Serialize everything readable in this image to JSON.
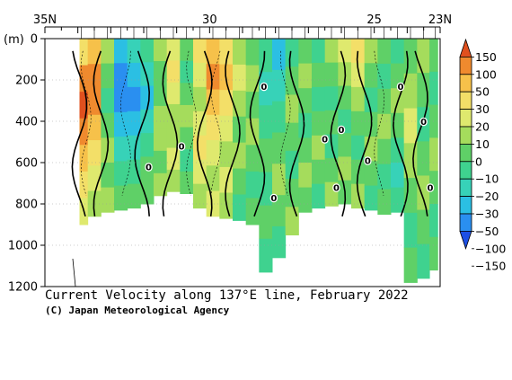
{
  "chart_data": {
    "type": "heatmap",
    "title": "Current Velocity along 137°E line, February 2022",
    "credit": "(C) Japan Meteorological Agency",
    "xlabel": "",
    "ylabel": "(m)",
    "x_ticks": [
      "35N",
      "30",
      "25",
      "23N"
    ],
    "x_tick_values": [
      35,
      30,
      25,
      23
    ],
    "xlim": [
      35,
      23
    ],
    "y_ticks": [
      "0",
      "200",
      "400",
      "600",
      "800",
      "1000",
      "1200"
    ],
    "y_tick_values": [
      0,
      200,
      400,
      600,
      800,
      1000,
      1200
    ],
    "ylim": [
      0,
      1200
    ],
    "colorbar": {
      "labels": [
        "150",
        "100",
        "50",
        "30",
        "20",
        "10",
        "0",
        "−10",
        "−20",
        "−30",
        "−50",
        "−100",
        "−150"
      ],
      "colors": [
        "#e0501e",
        "#ef8a2e",
        "#f6c14a",
        "#f3df68",
        "#dfe96e",
        "#a5dc5c",
        "#5fd067",
        "#3fd28f",
        "#37d2b8",
        "#2bbfe3",
        "#2a8ff0",
        "#1d4fe4"
      ]
    },
    "contour_label": "0",
    "columns": [
      {
        "lat": 33.9,
        "bottom": 900,
        "bands": [
          "#f3df68",
          "#ef8a2e",
          "#e0501e",
          "#ef8a2e",
          "#f6c14a",
          "#f3df68",
          "#dfe96e"
        ]
      },
      {
        "lat": 33.5,
        "bottom": 860,
        "bands": [
          "#f6c14a",
          "#ef8a2e",
          "#ef8a2e",
          "#f6c14a",
          "#f3df68",
          "#dfe96e",
          "#a5dc5c"
        ]
      },
      {
        "lat": 33.1,
        "bottom": 840,
        "bands": [
          "#a5dc5c",
          "#5fd067",
          "#3fd28f",
          "#5fd067",
          "#a5dc5c",
          "#5fd067",
          "#a5dc5c"
        ]
      },
      {
        "lat": 32.7,
        "bottom": 830,
        "bands": [
          "#2bbfe3",
          "#2a8ff0",
          "#2a8ff0",
          "#2bbfe3",
          "#37d2b8",
          "#3fd28f",
          "#5fd067"
        ]
      },
      {
        "lat": 32.3,
        "bottom": 820,
        "bands": [
          "#37d2b8",
          "#2bbfe3",
          "#2a8ff0",
          "#2bbfe3",
          "#37d2b8",
          "#3fd28f",
          "#5fd067"
        ]
      },
      {
        "lat": 31.9,
        "bottom": 800,
        "bands": [
          "#3fd28f",
          "#37d2b8",
          "#2bbfe3",
          "#37d2b8",
          "#3fd28f",
          "#5fd067",
          "#5fd067"
        ]
      },
      {
        "lat": 31.5,
        "bottom": 760,
        "bands": [
          "#a5dc5c",
          "#5fd067",
          "#5fd067",
          "#a5dc5c",
          "#a5dc5c",
          "#5fd067",
          "#a5dc5c"
        ]
      },
      {
        "lat": 31.1,
        "bottom": 740,
        "bands": [
          "#dfe96e",
          "#f3df68",
          "#dfe96e",
          "#a5dc5c",
          "#a5dc5c",
          "#dfe96e",
          "#a5dc5c"
        ]
      },
      {
        "lat": 30.7,
        "bottom": 750,
        "bands": [
          "#5fd067",
          "#3fd28f",
          "#5fd067",
          "#a5dc5c",
          "#5fd067",
          "#3fd28f",
          "#5fd067"
        ]
      },
      {
        "lat": 30.3,
        "bottom": 820,
        "bands": [
          "#f3df68",
          "#dfe96e",
          "#a5dc5c",
          "#dfe96e",
          "#f3df68",
          "#dfe96e",
          "#a5dc5c"
        ]
      },
      {
        "lat": 29.9,
        "bottom": 860,
        "bands": [
          "#f6c14a",
          "#ef8a2e",
          "#f6c14a",
          "#f3df68",
          "#dfe96e",
          "#a5dc5c",
          "#dfe96e"
        ]
      },
      {
        "lat": 29.5,
        "bottom": 870,
        "bands": [
          "#f3df68",
          "#f6c14a",
          "#f3df68",
          "#dfe96e",
          "#a5dc5c",
          "#dfe96e",
          "#a5dc5c"
        ]
      },
      {
        "lat": 29.1,
        "bottom": 880,
        "bands": [
          "#a5dc5c",
          "#dfe96e",
          "#a5dc5c",
          "#5fd067",
          "#a5dc5c",
          "#5fd067",
          "#3fd28f"
        ]
      },
      {
        "lat": 28.7,
        "bottom": 900,
        "bands": [
          "#5fd067",
          "#a5dc5c",
          "#5fd067",
          "#a5dc5c",
          "#5fd067",
          "#3fd28f",
          "#5fd067"
        ]
      },
      {
        "lat": 28.3,
        "bottom": 1130,
        "bands": [
          "#3fd28f",
          "#37d2b8",
          "#3fd28f",
          "#5fd067",
          "#3fd28f",
          "#5fd067",
          "#3fd28f"
        ]
      },
      {
        "lat": 27.9,
        "bottom": 1060,
        "bands": [
          "#2bbfe3",
          "#37d2b8",
          "#3fd28f",
          "#5fd067",
          "#a5dc5c",
          "#5fd067",
          "#3fd28f"
        ]
      },
      {
        "lat": 27.5,
        "bottom": 950,
        "bands": [
          "#3fd28f",
          "#5fd067",
          "#a5dc5c",
          "#5fd067",
          "#3fd28f",
          "#5fd067",
          "#a5dc5c"
        ]
      },
      {
        "lat": 27.1,
        "bottom": 840,
        "bands": [
          "#5fd067",
          "#a5dc5c",
          "#5fd067",
          "#3fd28f",
          "#5fd067",
          "#a5dc5c",
          "#5fd067"
        ]
      },
      {
        "lat": 26.7,
        "bottom": 820,
        "bands": [
          "#3fd28f",
          "#5fd067",
          "#3fd28f",
          "#5fd067",
          "#a5dc5c",
          "#5fd067",
          "#3fd28f"
        ]
      },
      {
        "lat": 26.3,
        "bottom": 810,
        "bands": [
          "#a5dc5c",
          "#5fd067",
          "#3fd28f",
          "#5fd067",
          "#3fd28f",
          "#5fd067",
          "#a5dc5c"
        ]
      },
      {
        "lat": 25.9,
        "bottom": 800,
        "bands": [
          "#dfe96e",
          "#a5dc5c",
          "#5fd067",
          "#3fd28f",
          "#5fd067",
          "#a5dc5c",
          "#5fd067"
        ]
      },
      {
        "lat": 25.5,
        "bottom": 820,
        "bands": [
          "#f3df68",
          "#dfe96e",
          "#a5dc5c",
          "#5fd067",
          "#3fd28f",
          "#5fd067",
          "#a5dc5c"
        ]
      },
      {
        "lat": 25.1,
        "bottom": 830,
        "bands": [
          "#a5dc5c",
          "#5fd067",
          "#3fd28f",
          "#5fd067",
          "#a5dc5c",
          "#5fd067",
          "#3fd28f"
        ]
      },
      {
        "lat": 24.7,
        "bottom": 850,
        "bands": [
          "#5fd067",
          "#3fd28f",
          "#5fd067",
          "#a5dc5c",
          "#5fd067",
          "#3fd28f",
          "#5fd067"
        ]
      },
      {
        "lat": 24.3,
        "bottom": 840,
        "bands": [
          "#3fd28f",
          "#5fd067",
          "#a5dc5c",
          "#5fd067",
          "#3fd28f",
          "#37d2b8",
          "#3fd28f"
        ]
      },
      {
        "lat": 23.9,
        "bottom": 1180,
        "bands": [
          "#5fd067",
          "#a5dc5c",
          "#dfe96e",
          "#a5dc5c",
          "#5fd067",
          "#3fd28f",
          "#5fd067"
        ]
      },
      {
        "lat": 23.5,
        "bottom": 1160,
        "bands": [
          "#a5dc5c",
          "#5fd067",
          "#3fd28f",
          "#5fd067",
          "#a5dc5c",
          "#5fd067",
          "#3fd28f"
        ]
      },
      {
        "lat": 23.15,
        "bottom": 1120,
        "bands": [
          "#5fd067",
          "#3fd28f",
          "#5fd067",
          "#a5dc5c",
          "#5fd067",
          "#3fd28f",
          "#5fd067"
        ]
      }
    ]
  }
}
